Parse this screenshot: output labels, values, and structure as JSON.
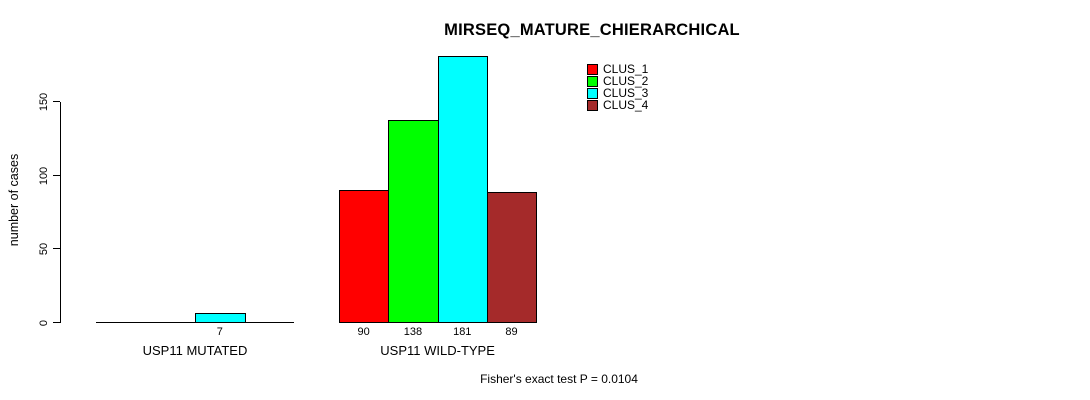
{
  "title": "MIRSEQ_MATURE_CHIERARCHICAL",
  "caption": "Fisher's exact test P = 0.0104",
  "chart_data": {
    "type": "bar",
    "title": "MIRSEQ_MATURE_CHIERARCHICAL",
    "xlabel": "",
    "ylabel": "number of cases",
    "yticks": [
      0,
      50,
      100,
      150
    ],
    "ylim": [
      0,
      185
    ],
    "grid": false,
    "categories": [
      "USP11 MUTATED",
      "USP11 WILD-TYPE"
    ],
    "series": [
      {
        "name": "CLUS_1",
        "color": "#ff0000",
        "values": [
          0,
          90
        ]
      },
      {
        "name": "CLUS_2",
        "color": "#00ff00",
        "values": [
          0,
          138
        ]
      },
      {
        "name": "CLUS_3",
        "color": "#00ffff",
        "values": [
          7,
          181
        ]
      },
      {
        "name": "CLUS_4",
        "color": "#a52a2a",
        "values": [
          0,
          89
        ]
      }
    ],
    "value_labels": [
      [
        null,
        null,
        "7",
        null
      ],
      [
        "90",
        "138",
        "181",
        "89"
      ]
    ],
    "legend": {
      "position": "top-right",
      "entries": [
        "CLUS_1",
        "CLUS_2",
        "CLUS_3",
        "CLUS_4"
      ]
    },
    "annotation": "Fisher's exact test P = 0.0104",
    "axis_color": "#000000",
    "bar_border_color": "#000000"
  }
}
